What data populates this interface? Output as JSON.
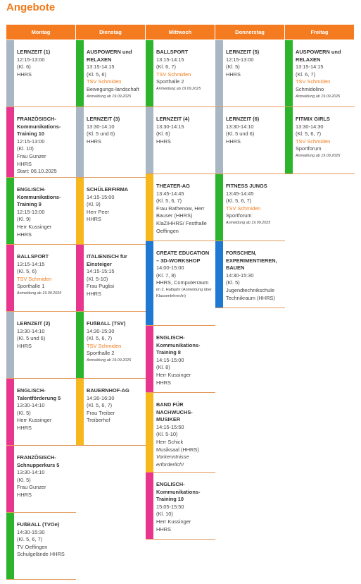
{
  "header": {
    "title": "Angebote"
  },
  "colors": {
    "gray": "#a9b6c4",
    "pink": "#e8368f",
    "green": "#2cb52c",
    "yellow": "#f6b81c",
    "blue": "#1f78d1"
  },
  "columns": [
    {
      "day": "Montag",
      "cards": [
        {
          "color": "gray",
          "title": "LERNZEIT (1)",
          "lines": [
            "12:15-13:00",
            "(Kl. 6)",
            "HHRS"
          ]
        },
        {
          "color": "pink",
          "title": "FRANZÖSISCH-Kommunikations-Training 10",
          "lines": [
            "12:15-13:00",
            "(Kl. 10)",
            "Frau Gunzer",
            "HHRS",
            "Start: 06.10.2025"
          ]
        },
        {
          "color": "green",
          "title": "ENGLISCH-Kommunikations-Training 9",
          "lines": [
            "12:15-13:00",
            "(Kl. 9)",
            "Herr Kussinger",
            "HHRS"
          ]
        },
        {
          "color": "pink",
          "title": "BALLSPORT",
          "lines": [
            "13:15-14:15",
            "(Kl. 5, 6)"
          ],
          "provider": "TSV Schmiden",
          "extra": [
            "Sporthalle 1"
          ],
          "note": "Anmeldung ab 19.09.2025"
        },
        {
          "color": "gray",
          "title": "LERNZEIT (2)",
          "lines": [
            "13:30-14:10",
            "(Kl. 5 und 6)",
            "HHRS"
          ]
        },
        {
          "color": "pink",
          "title": "ENGLISCH-Talentförderung 5",
          "lines": [
            "13:30-14:10",
            "(Kl. 5)",
            "Herr Kussinger",
            "HHRS"
          ]
        },
        {
          "color": "pink",
          "title": "FRANZÖSISCH-Schnupperkurs 5",
          "lines": [
            "13:30-14:10",
            "(Kl. 5)",
            "Frau Gunzer",
            "HHRS"
          ]
        },
        {
          "color": "green",
          "title": "FUßBALL (TVOe)",
          "lines": [
            "14:30-15:30",
            "(Kl. 5, 6, 7)",
            "TV Oeffingen",
            "Schulgelände HHRS"
          ]
        }
      ]
    },
    {
      "day": "Dienstag",
      "cards": [
        {
          "color": "green",
          "title": "AUSPOWERN und RELAXEN",
          "lines": [
            "13:15-14:15",
            "(Kl. 5, 6)"
          ],
          "provider": "TSV Schmiden",
          "extra": [
            "Bewegungs-landschaft"
          ],
          "note": "Anmeldung ab 19.09.2025"
        },
        {
          "color": "gray",
          "title": "LERNZEIT (3)",
          "lines": [
            "13:30-14:10",
            "(Kl. 5 und 6)",
            "HHRS"
          ]
        },
        {
          "color": "yellow",
          "title": "SCHÜLERFIRMA",
          "lines": [
            "14:15-15:00",
            "(Kl. 9)",
            "Herr Peer",
            "HHRS"
          ]
        },
        {
          "color": "pink",
          "title": "ITALIENISCH für Einsteiger",
          "lines": [
            "14:15-15:15",
            "(Kl. 5-10)",
            "Frau Puglisi",
            "HHRS"
          ]
        },
        {
          "color": "green",
          "title": "FUßBALL (TSV)",
          "lines": [
            "14:30-15:30",
            "(Kl. 5, 6, 7)"
          ],
          "provider": "TSV Schmiden",
          "extra": [
            "Sporthalle 2"
          ],
          "note": "Anmeldung ab 19.09.2025"
        },
        {
          "color": "yellow",
          "title": "BAUERNHOF-AG",
          "lines": [
            "14:30-16:30",
            "(Kl. 5, 6, 7)",
            "Frau Treiber",
            "Treiberhof"
          ]
        }
      ]
    },
    {
      "day": "Mittwoch",
      "cards": [
        {
          "color": "green",
          "title": "BALLSPORT",
          "lines": [
            "13:15-14:15",
            "(Kl. 6, 7)"
          ],
          "provider": "TSV Schmiden",
          "extra": [
            "Sporthalle 2"
          ],
          "note": "Anmeldung ab 19.09.2025"
        },
        {
          "color": "gray",
          "title": "LERNZEIT (4)",
          "lines": [
            "13:30-14:15",
            "(Kl. 6)",
            "HHRS"
          ]
        },
        {
          "color": "yellow",
          "title": "THEATER-AG",
          "lines": [
            "13:45-14:45",
            "(Kl. 5, 6, 7)",
            "Frau Rathenow, Herr Bauser  (HHRS)",
            "KlaZiHHRS/ Festhalle Oeffingen"
          ]
        },
        {
          "color": "blue",
          "title": "CREATE EDUCATION – 3D-WORKSHOP",
          "lines": [
            "14:00-15:00",
            "(Kl. 7, 8)",
            "HHRS, Computerraum"
          ],
          "small": "im 2. Halbjahr (Anmeldung über Klassenlehrer/in)"
        },
        {
          "color": "pink",
          "title": "ENGLISCH-Kommunikations-Training 8",
          "lines": [
            "14:15-15:00",
            "(Kl. 8)",
            "Herr Kussinger",
            "HHRS"
          ]
        },
        {
          "color": "yellow",
          "title": "BAND FÜR NACHWUCHS-MUSIKER",
          "lines": [
            "14:15-15:50",
            "(Kl. 5-10)",
            "Herr Schick",
            "Musiksaal (HHRS)"
          ],
          "remark": "Vorkenntnisse erforderlich!"
        },
        {
          "color": "pink",
          "title": "ENGLISCH-Kommunikations-Training 10",
          "lines": [
            "15:05-15:50",
            "(Kl. 10)",
            "Herr Kussinger",
            "HHRS"
          ]
        }
      ]
    },
    {
      "day": "Donnerstag",
      "cards": [
        {
          "color": "gray",
          "title": "LERNZEIT (5)",
          "lines": [
            "12:15-13:00",
            "(Kl. 5)",
            "HHRS"
          ]
        },
        {
          "color": "gray",
          "title": "LERNZEIT (6)",
          "lines": [
            "13:30-14:10",
            "(Kl. 5 und 6)",
            "HHRS"
          ]
        },
        {
          "color": "green",
          "title": "FITNESS JUNGS",
          "lines": [
            "13:45-14:45",
            "(Kl. 5, 6, 7)"
          ],
          "provider": "TSV Schmiden",
          "extra": [
            "Sportforum"
          ],
          "note": "Anmeldung ab 19.09.2025"
        },
        {
          "color": "blue",
          "title": "FORSCHEN, EXPERIMENTIEREN, BAUEN",
          "lines": [
            "14:30-15:30",
            "(Kl. 5)",
            "Jugendtechnikschule Technikraum (HHRS)"
          ]
        }
      ]
    },
    {
      "day": "Freitag",
      "cards": [
        {
          "color": "green",
          "title": "AUSPOWERN und RELAXEN",
          "lines": [
            "13:15-14:15",
            "(Kl. 6, 7)"
          ],
          "provider": "TSV Schmiden",
          "extra": [
            "Schmidolino"
          ],
          "note": "Anmeldung ab 19.09.2025"
        },
        {
          "color": "green",
          "title": "FITMIX GIRLS",
          "lines": [
            "13:30-14:30",
            "(Kl. 5, 6, 7)"
          ],
          "provider": "TSV Schmiden",
          "extra": [
            "Sportforum"
          ],
          "note": "Anmeldung ab 19.09.2025"
        }
      ]
    }
  ]
}
